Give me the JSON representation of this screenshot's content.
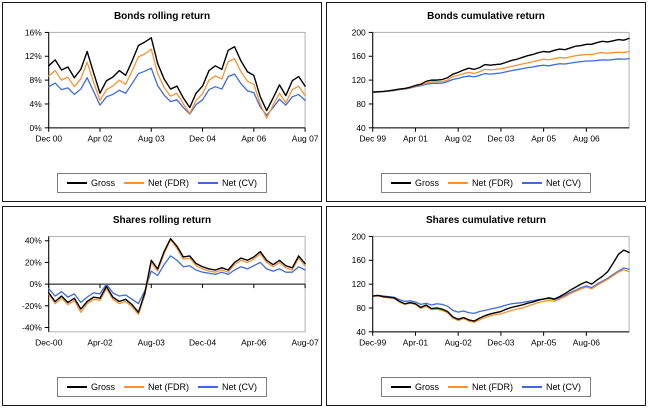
{
  "colors": {
    "gross": "#000000",
    "net_fdr": "#f79333",
    "net_cv": "#3f6bd8",
    "plot_border": "#b0b0b0",
    "axis": "#000000"
  },
  "chart_data": [
    {
      "type": "line",
      "title": "Bonds rolling return",
      "position": "top-left",
      "grid": false,
      "legend_position": "bottom",
      "y_axis": {
        "min": 0,
        "max": 16,
        "tick_values": [
          0,
          4,
          8,
          12,
          16
        ],
        "tick_labels": [
          "0%",
          "4%",
          "8%",
          "12%",
          "16%"
        ]
      },
      "x_axis": {
        "tick_labels": [
          "Dec 00",
          "Apr 02",
          "Aug 03",
          "Dec 04",
          "Apr 06",
          "Aug 07"
        ],
        "tick_indices": [
          0,
          8,
          16,
          24,
          32,
          40
        ],
        "n_points": 41
      },
      "category_axis_value": 0,
      "series": [
        {
          "name": "Gross",
          "color_key": "gross",
          "values": [
            10.4,
            11.4,
            9.7,
            10.2,
            8.4,
            9.8,
            12.8,
            9.2,
            5.8,
            7.9,
            8.5,
            9.6,
            8.8,
            11.2,
            13.8,
            14.4,
            15.1,
            10.8,
            8.2,
            6.5,
            7.0,
            5.0,
            3.4,
            5.8,
            7.0,
            9.6,
            10.4,
            9.8,
            13.0,
            13.6,
            11.2,
            9.4,
            8.8,
            5.2,
            2.9,
            5.0,
            7.2,
            5.4,
            7.9,
            8.6,
            7.0
          ]
        },
        {
          "name": "Net (FDR)",
          "color_key": "net_fdr",
          "values": [
            8.7,
            9.6,
            8.0,
            8.5,
            6.9,
            8.2,
            11.0,
            7.6,
            4.6,
            6.4,
            7.0,
            8.0,
            7.3,
            9.5,
            11.9,
            12.4,
            13.2,
            9.1,
            6.8,
            5.3,
            5.8,
            4.0,
            2.4,
            4.6,
            5.7,
            8.0,
            8.7,
            8.2,
            11.1,
            11.6,
            9.4,
            7.8,
            7.3,
            4.0,
            1.6,
            3.8,
            5.8,
            4.2,
            6.4,
            7.0,
            5.4
          ]
        },
        {
          "name": "Net (CV)",
          "color_key": "net_cv",
          "values": [
            6.9,
            7.5,
            6.4,
            6.7,
            5.6,
            6.5,
            8.4,
            6.1,
            3.8,
            5.2,
            5.6,
            6.3,
            5.8,
            7.4,
            9.1,
            9.5,
            10.0,
            7.1,
            5.5,
            4.4,
            4.7,
            3.4,
            2.3,
            3.9,
            4.7,
            6.4,
            6.9,
            6.5,
            8.6,
            9.0,
            7.4,
            6.2,
            5.9,
            3.5,
            2.1,
            3.4,
            4.8,
            3.8,
            5.2,
            5.6,
            4.6
          ]
        }
      ]
    },
    {
      "type": "line",
      "title": "Bonds cumulative return",
      "position": "top-right",
      "grid": false,
      "legend_position": "bottom",
      "y_axis": {
        "min": 40,
        "max": 200,
        "tick_values": [
          40,
          80,
          120,
          160,
          200
        ],
        "tick_labels": [
          "40",
          "80",
          "120",
          "160",
          "200"
        ]
      },
      "x_axis": {
        "tick_labels": [
          "Dec 99",
          "Apr 01",
          "Aug 02",
          "Dec 03",
          "Apr 05",
          "Aug 06"
        ],
        "tick_indices": [
          0,
          8,
          16,
          24,
          32,
          40
        ],
        "n_points": 49
      },
      "category_axis_value": 40,
      "series": [
        {
          "name": "Gross",
          "color_key": "gross",
          "values": [
            100,
            100.5,
            101,
            102,
            103.5,
            105,
            106,
            108,
            111,
            113,
            118,
            120,
            120,
            121,
            124,
            130,
            133,
            137,
            140,
            138,
            141,
            146,
            145,
            146,
            147,
            150,
            153,
            155,
            158,
            161,
            163,
            166,
            168,
            167,
            170,
            172,
            171,
            174,
            177,
            178,
            180,
            180,
            183,
            185,
            184,
            186,
            188,
            187,
            190
          ]
        },
        {
          "name": "Net (FDR)",
          "color_key": "net_fdr",
          "values": [
            100,
            100.4,
            101,
            101.8,
            103,
            104.5,
            105.5,
            107,
            110,
            111.5,
            115,
            117,
            117,
            117.5,
            120,
            126,
            128,
            131,
            133,
            131,
            134,
            138,
            137,
            138,
            139,
            141,
            143,
            145,
            147,
            149,
            151,
            153,
            155,
            154,
            156,
            158,
            157,
            159,
            161,
            162,
            163,
            163,
            165,
            166,
            165,
            166,
            167,
            166,
            168
          ]
        },
        {
          "name": "Net (CV)",
          "color_key": "net_cv",
          "values": [
            100,
            100.3,
            100.8,
            101.5,
            102.5,
            104,
            105,
            106.5,
            109,
            110.5,
            113,
            114.5,
            114.5,
            115,
            117.5,
            121,
            123,
            125.5,
            127,
            125.5,
            128,
            131,
            130,
            131,
            132,
            134,
            136,
            137.5,
            139,
            141,
            142,
            144,
            145,
            144,
            146,
            147.5,
            147,
            148.5,
            150,
            151,
            152,
            152,
            153,
            154,
            153.5,
            154.5,
            155.5,
            155,
            156
          ]
        }
      ]
    },
    {
      "type": "line",
      "title": "Shares rolling return",
      "position": "bottom-left",
      "grid": false,
      "legend_position": "bottom",
      "y_axis": {
        "min": -44,
        "max": 44,
        "tick_values": [
          -40,
          -20,
          0,
          20,
          40
        ],
        "tick_labels": [
          "-40%",
          "-20%",
          "0%",
          "20%",
          "40%"
        ]
      },
      "x_axis": {
        "tick_labels": [
          "Dec-00",
          "Apr-02",
          "Aug-03",
          "Dec-04",
          "Apr-06",
          "Aug-07"
        ],
        "tick_indices": [
          0,
          8,
          16,
          24,
          32,
          40
        ],
        "n_points": 41
      },
      "category_axis_value": 0,
      "series": [
        {
          "name": "Gross",
          "color_key": "gross",
          "values": [
            -8,
            -16,
            -11,
            -17,
            -13,
            -23,
            -16,
            -12,
            -13,
            -2,
            -12,
            -16,
            -14,
            -19,
            -26,
            -8,
            22,
            14,
            30,
            42,
            35,
            25,
            26,
            19,
            16,
            14,
            13,
            15,
            13,
            20,
            24,
            22,
            25,
            30,
            22,
            18,
            22,
            17,
            15,
            26,
            19
          ]
        },
        {
          "name": "Net (FDR)",
          "color_key": "net_fdr",
          "values": [
            -9,
            -18,
            -13,
            -19,
            -15,
            -26,
            -18,
            -14,
            -15,
            -4,
            -14,
            -18,
            -16,
            -21,
            -28,
            -10,
            20,
            12,
            28,
            41,
            33,
            23,
            24,
            17,
            14,
            12,
            11,
            13,
            11,
            18,
            22,
            20,
            23,
            28,
            20,
            16,
            20,
            15,
            13,
            24,
            17
          ]
        },
        {
          "name": "Net (CV)",
          "color_key": "net_cv",
          "values": [
            -4,
            -11,
            -7,
            -12,
            -9,
            -17,
            -12,
            -8,
            -9,
            0,
            -8,
            -11,
            -10,
            -14,
            -18,
            -6,
            12,
            8,
            18,
            26,
            22,
            16,
            17,
            13,
            11,
            10,
            9,
            11,
            9,
            13,
            16,
            14,
            17,
            20,
            14,
            12,
            14,
            11,
            11,
            16,
            13
          ]
        }
      ]
    },
    {
      "type": "line",
      "title": "Shares cumulative return",
      "position": "bottom-right",
      "grid": false,
      "legend_position": "bottom",
      "y_axis": {
        "min": 40,
        "max": 200,
        "tick_values": [
          40,
          80,
          120,
          160,
          200
        ],
        "tick_labels": [
          "40",
          "80",
          "120",
          "160",
          "200"
        ]
      },
      "x_axis": {
        "tick_labels": [
          "Dec-99",
          "Apr-01",
          "Aug-02",
          "Dec-03",
          "Apr-05",
          "Aug-06"
        ],
        "tick_indices": [
          0,
          8,
          16,
          24,
          32,
          40
        ],
        "n_points": 49
      },
      "category_axis_value": 40,
      "series": [
        {
          "name": "Gross",
          "color_key": "gross",
          "values": [
            100,
            101,
            99,
            98,
            97,
            91,
            87,
            89,
            87,
            81,
            85,
            79,
            80,
            78,
            74,
            65,
            61,
            64,
            60,
            58,
            63,
            67,
            70,
            72,
            74,
            78,
            81,
            83,
            85,
            88,
            90,
            93,
            95,
            97,
            95,
            99,
            104,
            110,
            115,
            120,
            124,
            120,
            127,
            133,
            141,
            155,
            170,
            177,
            173
          ]
        },
        {
          "name": "Net (FDR)",
          "color_key": "net_fdr",
          "values": [
            100,
            100,
            98,
            97,
            96,
            90,
            86,
            88,
            86,
            79,
            83,
            77,
            78,
            76,
            72,
            63,
            59,
            62,
            58,
            56,
            60,
            64,
            67,
            69,
            70,
            73,
            76,
            78,
            80,
            83,
            86,
            89,
            91,
            93,
            91,
            95,
            99,
            104,
            108,
            112,
            115,
            112,
            118,
            123,
            128,
            134,
            140,
            144,
            141
          ]
        },
        {
          "name": "Net (CV)",
          "color_key": "net_cv",
          "values": [
            100,
            101,
            100,
            99,
            98,
            94,
            91,
            92,
            90,
            86,
            88,
            85,
            87,
            86,
            83,
            76,
            73,
            75,
            72,
            71,
            74,
            76,
            78,
            80,
            82,
            85,
            87,
            88,
            89,
            91,
            92,
            94,
            95,
            96,
            94,
            97,
            101,
            106,
            110,
            114,
            117,
            114,
            120,
            125,
            130,
            136,
            142,
            147,
            145
          ]
        }
      ]
    }
  ]
}
